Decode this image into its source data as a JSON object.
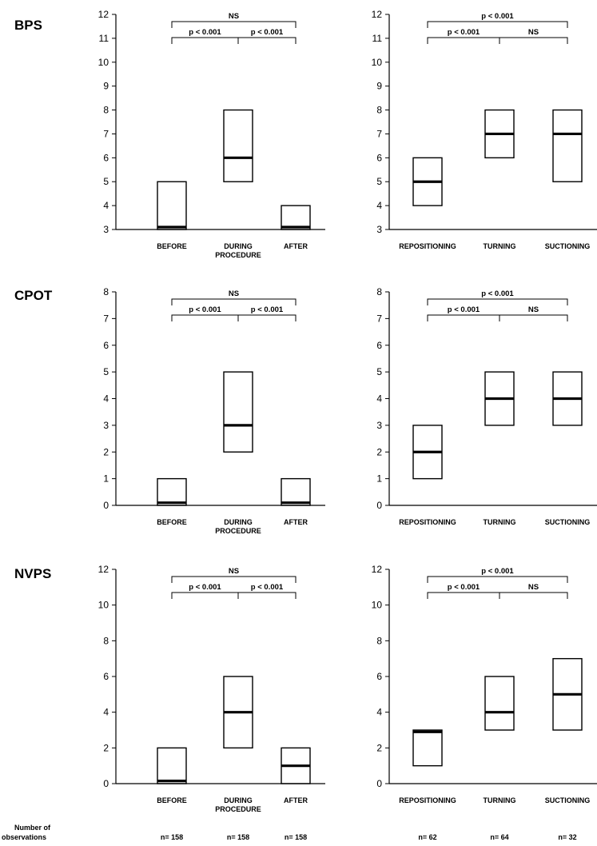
{
  "chart_data": [
    {
      "type": "box",
      "panel_label": "BPS",
      "categories": [
        "BEFORE",
        "DURING PROCEDURE",
        "AFTER"
      ],
      "ylim": [
        3,
        12
      ],
      "yticks": [
        3,
        4,
        5,
        6,
        7,
        8,
        9,
        10,
        11,
        12
      ],
      "boxes": [
        {
          "low": 3,
          "median": 3.1,
          "high": 5
        },
        {
          "low": 5,
          "median": 6,
          "high": 8
        },
        {
          "low": 3,
          "median": 3.1,
          "high": 4
        }
      ],
      "comparisons": [
        {
          "from": 0,
          "to": 1,
          "label": "p < 0.001",
          "level": 0
        },
        {
          "from": 1,
          "to": 2,
          "label": "p < 0.001",
          "level": 0
        },
        {
          "from": 0,
          "to": 2,
          "label": "NS",
          "level": 1
        }
      ]
    },
    {
      "type": "box",
      "panel_label": "",
      "categories": [
        "REPOSITIONING",
        "TURNING",
        "SUCTIONING"
      ],
      "ylim": [
        3,
        12
      ],
      "yticks": [
        3,
        4,
        5,
        6,
        7,
        8,
        9,
        10,
        11,
        12
      ],
      "boxes": [
        {
          "low": 4,
          "median": 5,
          "high": 6
        },
        {
          "low": 6,
          "median": 7,
          "high": 8
        },
        {
          "low": 5,
          "median": 7,
          "high": 8
        }
      ],
      "comparisons": [
        {
          "from": 0,
          "to": 1,
          "label": "p < 0.001",
          "level": 0
        },
        {
          "from": 1,
          "to": 2,
          "label": "NS",
          "level": 0
        },
        {
          "from": 0,
          "to": 2,
          "label": "p < 0.001",
          "level": 1
        }
      ]
    },
    {
      "type": "box",
      "panel_label": "CPOT",
      "categories": [
        "BEFORE",
        "DURING PROCEDURE",
        "AFTER"
      ],
      "ylim": [
        0,
        8
      ],
      "yticks": [
        0,
        1,
        2,
        3,
        4,
        5,
        6,
        7,
        8
      ],
      "boxes": [
        {
          "low": 0,
          "median": 0.1,
          "high": 1
        },
        {
          "low": 2,
          "median": 3,
          "high": 5
        },
        {
          "low": 0,
          "median": 0.1,
          "high": 1
        }
      ],
      "comparisons": [
        {
          "from": 0,
          "to": 1,
          "label": "p < 0.001",
          "level": 0
        },
        {
          "from": 1,
          "to": 2,
          "label": "p < 0.001",
          "level": 0
        },
        {
          "from": 0,
          "to": 2,
          "label": "NS",
          "level": 1
        }
      ]
    },
    {
      "type": "box",
      "panel_label": "",
      "categories": [
        "REPOSITIONING",
        "TURNING",
        "SUCTIONING"
      ],
      "ylim": [
        0,
        8
      ],
      "yticks": [
        0,
        1,
        2,
        3,
        4,
        5,
        6,
        7,
        8
      ],
      "boxes": [
        {
          "low": 1,
          "median": 2,
          "high": 3
        },
        {
          "low": 3,
          "median": 4,
          "high": 5
        },
        {
          "low": 3,
          "median": 4,
          "high": 5
        }
      ],
      "comparisons": [
        {
          "from": 0,
          "to": 1,
          "label": "p < 0.001",
          "level": 0
        },
        {
          "from": 1,
          "to": 2,
          "label": "NS",
          "level": 0
        },
        {
          "from": 0,
          "to": 2,
          "label": "p < 0.001",
          "level": 1
        }
      ]
    },
    {
      "type": "box",
      "panel_label": "NVPS",
      "categories": [
        "BEFORE",
        "DURING PROCEDURE",
        "AFTER"
      ],
      "ylim": [
        0,
        12
      ],
      "yticks": [
        0,
        2,
        4,
        6,
        8,
        10,
        12
      ],
      "boxes": [
        {
          "low": 0,
          "median": 0.15,
          "high": 2
        },
        {
          "low": 2,
          "median": 4,
          "high": 6
        },
        {
          "low": 0,
          "median": 1,
          "high": 2
        }
      ],
      "comparisons": [
        {
          "from": 0,
          "to": 1,
          "label": "p < 0.001",
          "level": 0
        },
        {
          "from": 1,
          "to": 2,
          "label": "p < 0.001",
          "level": 0
        },
        {
          "from": 0,
          "to": 2,
          "label": "NS",
          "level": 1
        }
      ]
    },
    {
      "type": "box",
      "panel_label": "",
      "categories": [
        "REPOSITIONING",
        "TURNING",
        "SUCTIONING"
      ],
      "ylim": [
        0,
        12
      ],
      "yticks": [
        0,
        2,
        4,
        6,
        8,
        10,
        12
      ],
      "boxes": [
        {
          "low": 1,
          "median": 2.9,
          "high": 3
        },
        {
          "low": 3,
          "median": 4,
          "high": 6
        },
        {
          "low": 3,
          "median": 5,
          "high": 7
        }
      ],
      "comparisons": [
        {
          "from": 0,
          "to": 1,
          "label": "p < 0.001",
          "level": 0
        },
        {
          "from": 1,
          "to": 2,
          "label": "NS",
          "level": 0
        },
        {
          "from": 0,
          "to": 2,
          "label": "p < 0.001",
          "level": 1
        }
      ]
    }
  ],
  "observations": {
    "label": "Number of observations",
    "left": [
      "n= 158",
      "n= 158",
      "n= 158"
    ],
    "right": [
      "n= 62",
      "n= 64",
      "n= 32"
    ]
  }
}
